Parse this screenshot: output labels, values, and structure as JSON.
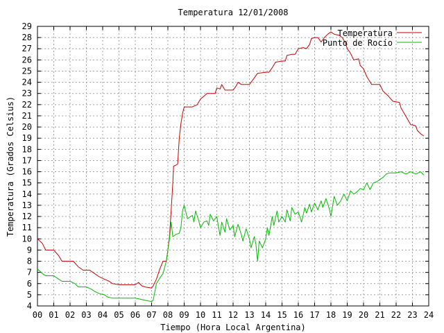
{
  "chart_data": {
    "type": "line",
    "title": "Temperatura 12/01/2008",
    "xlabel": "Tiempo (Hora Local Argentina)",
    "ylabel": "Temperatura (Grados Celsius)",
    "xlim": [
      0,
      24
    ],
    "ylim": [
      4,
      29
    ],
    "x_ticks": [
      "00",
      "01",
      "02",
      "03",
      "04",
      "05",
      "06",
      "07",
      "08",
      "09",
      "10",
      "11",
      "12",
      "13",
      "14",
      "15",
      "16",
      "17",
      "18",
      "19",
      "20",
      "21",
      "22",
      "23",
      "24"
    ],
    "y_ticks": [
      "4",
      "5",
      "6",
      "7",
      "8",
      "9",
      "10",
      "11",
      "12",
      "13",
      "14",
      "15",
      "16",
      "17",
      "18",
      "19",
      "20",
      "21",
      "22",
      "23",
      "24",
      "25",
      "26",
      "27",
      "28",
      "29"
    ],
    "grid": true,
    "legend_position": "top-right",
    "series": [
      {
        "name": "Temperatura",
        "color": "#cc0000",
        "points": [
          [
            0,
            10
          ],
          [
            0.3,
            9.6
          ],
          [
            0.5,
            9.0
          ],
          [
            1.0,
            9.0
          ],
          [
            1.3,
            8.5
          ],
          [
            1.5,
            8.0
          ],
          [
            2.2,
            8.0
          ],
          [
            2.5,
            7.5
          ],
          [
            2.8,
            7.2
          ],
          [
            3.2,
            7.2
          ],
          [
            3.5,
            6.9
          ],
          [
            3.8,
            6.6
          ],
          [
            4.1,
            6.4
          ],
          [
            4.4,
            6.2
          ],
          [
            4.6,
            6.0
          ],
          [
            5.0,
            5.9
          ],
          [
            5.5,
            5.9
          ],
          [
            6.0,
            5.9
          ],
          [
            6.2,
            6.1
          ],
          [
            6.4,
            5.8
          ],
          [
            6.6,
            5.7
          ],
          [
            7.0,
            5.6
          ],
          [
            7.1,
            5.8
          ],
          [
            7.3,
            6.4
          ],
          [
            7.5,
            7.3
          ],
          [
            7.7,
            8.0
          ],
          [
            7.9,
            8.0
          ],
          [
            8.0,
            9.0
          ],
          [
            8.1,
            10.2
          ],
          [
            8.2,
            12.5
          ],
          [
            8.3,
            15.0
          ],
          [
            8.35,
            16.5
          ],
          [
            8.5,
            16.6
          ],
          [
            8.6,
            16.7
          ],
          [
            8.7,
            19.0
          ],
          [
            8.8,
            20.3
          ],
          [
            8.9,
            21.2
          ],
          [
            9.0,
            21.8
          ],
          [
            9.5,
            21.8
          ],
          [
            9.8,
            22.0
          ],
          [
            10.0,
            22.5
          ],
          [
            10.4,
            23.0
          ],
          [
            10.9,
            23.0
          ],
          [
            11.0,
            23.5
          ],
          [
            11.2,
            23.4
          ],
          [
            11.3,
            23.8
          ],
          [
            11.5,
            23.3
          ],
          [
            12.0,
            23.3
          ],
          [
            12.2,
            23.7
          ],
          [
            12.3,
            24.0
          ],
          [
            12.5,
            23.8
          ],
          [
            13.0,
            23.8
          ],
          [
            13.2,
            24.2
          ],
          [
            13.5,
            24.8
          ],
          [
            14.0,
            24.9
          ],
          [
            14.2,
            24.9
          ],
          [
            14.4,
            25.3
          ],
          [
            14.6,
            25.8
          ],
          [
            15.0,
            25.9
          ],
          [
            15.2,
            25.9
          ],
          [
            15.3,
            26.4
          ],
          [
            15.6,
            26.5
          ],
          [
            15.8,
            26.5
          ],
          [
            16.0,
            27.0
          ],
          [
            16.3,
            27.1
          ],
          [
            16.5,
            27.0
          ],
          [
            16.7,
            27.4
          ],
          [
            16.8,
            27.9
          ],
          [
            17.0,
            28.0
          ],
          [
            17.2,
            28.0
          ],
          [
            17.4,
            27.6
          ],
          [
            17.6,
            28.0
          ],
          [
            17.8,
            28.3
          ],
          [
            18.0,
            28.5
          ],
          [
            18.2,
            28.3
          ],
          [
            18.5,
            28.2
          ],
          [
            18.7,
            28.0
          ],
          [
            18.9,
            27.5
          ],
          [
            19.0,
            27.0
          ],
          [
            19.2,
            26.6
          ],
          [
            19.4,
            26.0
          ],
          [
            19.7,
            26.1
          ],
          [
            19.8,
            25.5
          ],
          [
            20.0,
            25.2
          ],
          [
            20.2,
            24.5
          ],
          [
            20.5,
            23.8
          ],
          [
            21.0,
            23.8
          ],
          [
            21.2,
            23.2
          ],
          [
            21.5,
            22.8
          ],
          [
            21.8,
            22.3
          ],
          [
            22.2,
            22.2
          ],
          [
            22.3,
            21.7
          ],
          [
            22.5,
            21.2
          ],
          [
            22.7,
            20.7
          ],
          [
            22.9,
            20.2
          ],
          [
            23.0,
            20.2
          ],
          [
            23.2,
            20.1
          ],
          [
            23.3,
            19.7
          ],
          [
            23.5,
            19.4
          ],
          [
            23.7,
            19.2
          ]
        ]
      },
      {
        "name": "Punto de Rocío",
        "color": "#00bb00",
        "points": [
          [
            0,
            7.3
          ],
          [
            0.3,
            6.9
          ],
          [
            0.5,
            6.7
          ],
          [
            1.0,
            6.7
          ],
          [
            1.3,
            6.4
          ],
          [
            1.5,
            6.2
          ],
          [
            2.0,
            6.2
          ],
          [
            2.3,
            6.0
          ],
          [
            2.5,
            5.7
          ],
          [
            3.0,
            5.7
          ],
          [
            3.3,
            5.5
          ],
          [
            3.5,
            5.3
          ],
          [
            3.8,
            5.1
          ],
          [
            4.1,
            5.0
          ],
          [
            4.3,
            4.8
          ],
          [
            4.6,
            4.7
          ],
          [
            5.5,
            4.7
          ],
          [
            6.0,
            4.7
          ],
          [
            6.3,
            4.6
          ],
          [
            6.6,
            4.5
          ],
          [
            7.0,
            4.4
          ],
          [
            7.1,
            4.5
          ],
          [
            7.3,
            6.0
          ],
          [
            7.5,
            6.5
          ],
          [
            7.7,
            6.9
          ],
          [
            7.9,
            8.0
          ],
          [
            8.1,
            10.0
          ],
          [
            8.2,
            11.5
          ],
          [
            8.3,
            10.2
          ],
          [
            8.5,
            10.4
          ],
          [
            8.7,
            10.5
          ],
          [
            8.8,
            11.0
          ],
          [
            8.9,
            12.5
          ],
          [
            9.0,
            13.0
          ],
          [
            9.2,
            11.8
          ],
          [
            9.5,
            12.1
          ],
          [
            9.6,
            11.5
          ],
          [
            9.7,
            12.5
          ],
          [
            9.9,
            11.6
          ],
          [
            10.0,
            11.0
          ],
          [
            10.2,
            11.5
          ],
          [
            10.4,
            11.6
          ],
          [
            10.5,
            11.2
          ],
          [
            10.6,
            12.2
          ],
          [
            10.8,
            11.6
          ],
          [
            11.0,
            12.0
          ],
          [
            11.1,
            11.1
          ],
          [
            11.2,
            10.3
          ],
          [
            11.3,
            11.5
          ],
          [
            11.5,
            10.6
          ],
          [
            11.6,
            11.8
          ],
          [
            11.8,
            10.8
          ],
          [
            12.0,
            11.2
          ],
          [
            12.1,
            10.2
          ],
          [
            12.3,
            11.3
          ],
          [
            12.5,
            10.4
          ],
          [
            12.6,
            9.8
          ],
          [
            12.8,
            10.9
          ],
          [
            13.0,
            10.0
          ],
          [
            13.1,
            9.2
          ],
          [
            13.3,
            10.2
          ],
          [
            13.4,
            9.5
          ],
          [
            13.5,
            8.0
          ],
          [
            13.6,
            9.8
          ],
          [
            13.8,
            9.2
          ],
          [
            14.0,
            10.0
          ],
          [
            14.1,
            11.0
          ],
          [
            14.2,
            10.3
          ],
          [
            14.4,
            12.0
          ],
          [
            14.5,
            11.2
          ],
          [
            14.7,
            12.5
          ],
          [
            14.8,
            11.5
          ],
          [
            15.0,
            12.0
          ],
          [
            15.2,
            11.5
          ],
          [
            15.3,
            12.6
          ],
          [
            15.5,
            11.6
          ],
          [
            15.6,
            12.8
          ],
          [
            15.8,
            12.2
          ],
          [
            16.0,
            12.4
          ],
          [
            16.2,
            11.5
          ],
          [
            16.4,
            12.8
          ],
          [
            16.5,
            12.3
          ],
          [
            16.7,
            13.1
          ],
          [
            16.8,
            12.4
          ],
          [
            17.0,
            13.2
          ],
          [
            17.2,
            12.6
          ],
          [
            17.4,
            13.4
          ],
          [
            17.5,
            12.8
          ],
          [
            17.7,
            13.6
          ],
          [
            17.9,
            12.7
          ],
          [
            18.0,
            12.0
          ],
          [
            18.2,
            13.8
          ],
          [
            18.4,
            13.0
          ],
          [
            18.6,
            13.4
          ],
          [
            18.8,
            14.0
          ],
          [
            19.0,
            13.4
          ],
          [
            19.2,
            14.3
          ],
          [
            19.4,
            14.0
          ],
          [
            19.6,
            14.2
          ],
          [
            19.8,
            14.5
          ],
          [
            20.0,
            14.4
          ],
          [
            20.2,
            15.0
          ],
          [
            20.4,
            14.4
          ],
          [
            20.6,
            15.0
          ],
          [
            20.8,
            15.1
          ],
          [
            21.0,
            15.3
          ],
          [
            21.2,
            15.5
          ],
          [
            21.4,
            15.8
          ],
          [
            21.6,
            15.9
          ],
          [
            22.0,
            15.9
          ],
          [
            22.3,
            16.0
          ],
          [
            22.6,
            15.8
          ],
          [
            22.9,
            16.0
          ],
          [
            23.2,
            15.8
          ],
          [
            23.5,
            16.0
          ],
          [
            23.7,
            15.7
          ]
        ]
      }
    ]
  }
}
